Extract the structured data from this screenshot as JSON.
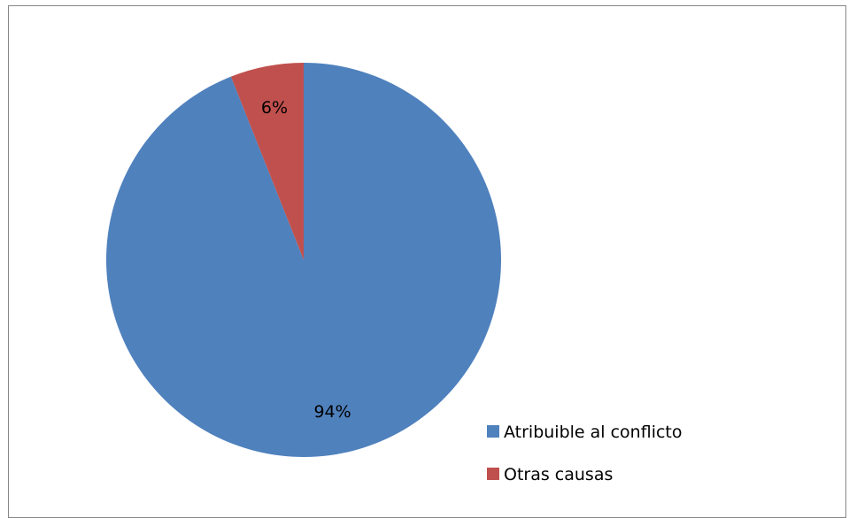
{
  "chart_data": {
    "type": "pie",
    "categories": [
      "Atribuible al conflicto",
      "Otras causas"
    ],
    "values": [
      94,
      6
    ],
    "data_labels": [
      "94%",
      "6%"
    ],
    "colors": [
      "#4F81BD",
      "#C0504D"
    ],
    "title": "",
    "legend": {
      "position": "bottom-right",
      "entries": [
        "Atribuible al conflicto",
        "Otras causas"
      ]
    }
  }
}
